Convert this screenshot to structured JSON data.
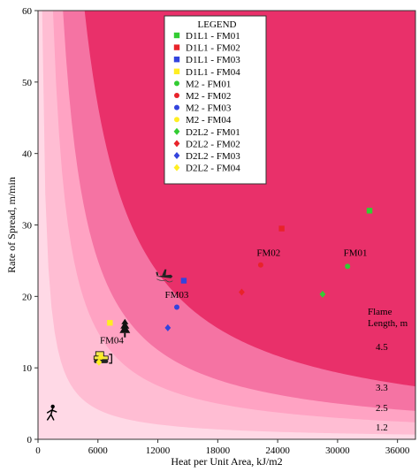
{
  "chart_data": {
    "type": "scatter",
    "title": "",
    "xlabel": "Heat per Unit Area, kJ/m2",
    "ylabel": "Rate of Spread, m/min",
    "xlim": [
      0,
      37800
    ],
    "ylim": [
      0,
      60
    ],
    "xticks": [
      "0",
      "6000",
      "12000",
      "18000",
      "24000",
      "30000",
      "36000"
    ],
    "yticks": [
      "0",
      "10",
      "20",
      "30",
      "40",
      "50",
      "60"
    ],
    "flame_length_zones": {
      "title": "Flame Length, m",
      "levels": [
        "1.2",
        "2.5",
        "3.3",
        "4.5"
      ],
      "hpa_times_ros": [
        25000,
        90000,
        150000,
        280000
      ],
      "colors": [
        "#ffd9e6",
        "#ffbdd3",
        "#ffa3c3",
        "#f573a3",
        "#e9306a"
      ]
    },
    "series": [
      {
        "name": "D1L1 - FM01",
        "marker": "square",
        "color": "#33cc33",
        "points": [
          [
            33200,
            32
          ]
        ]
      },
      {
        "name": "D1L1 - FM02",
        "marker": "square",
        "color": "#e8232a",
        "points": [
          [
            24400,
            29.5
          ]
        ]
      },
      {
        "name": "D1L1 - FM03",
        "marker": "square",
        "color": "#3344dd",
        "points": [
          [
            14600,
            22.2
          ]
        ]
      },
      {
        "name": "D1L1 - FM04",
        "marker": "square",
        "color": "#ffee22",
        "points": [
          [
            7200,
            16.3
          ]
        ]
      },
      {
        "name": "M2 - FM01",
        "marker": "circle",
        "color": "#33cc33",
        "points": [
          [
            31000,
            24.2
          ]
        ]
      },
      {
        "name": "M2 - FM02",
        "marker": "circle",
        "color": "#e8232a",
        "points": [
          [
            22300,
            24.4
          ]
        ]
      },
      {
        "name": "M2 - FM03",
        "marker": "circle",
        "color": "#3344dd",
        "points": [
          [
            13900,
            18.5
          ]
        ]
      },
      {
        "name": "M2 - FM04",
        "marker": "circle",
        "color": "#ffee22",
        "points": [
          [
            6300,
            11.5
          ]
        ]
      },
      {
        "name": "D2L2 - FM01",
        "marker": "diamond",
        "color": "#33cc33",
        "points": [
          [
            28500,
            20.3
          ]
        ]
      },
      {
        "name": "D2L2 - FM02",
        "marker": "diamond",
        "color": "#e8232a",
        "points": [
          [
            20400,
            20.6
          ]
        ]
      },
      {
        "name": "D2L2 - FM03",
        "marker": "diamond",
        "color": "#3344dd",
        "points": [
          [
            13000,
            15.6
          ]
        ]
      },
      {
        "name": "D2L2 - FM04",
        "marker": "diamond",
        "color": "#ffee22",
        "points": [
          [
            6100,
            10.8
          ]
        ]
      }
    ],
    "annotations": [
      {
        "text": "FM01",
        "x": 30600,
        "y": 25.7
      },
      {
        "text": "FM02",
        "x": 21900,
        "y": 25.7
      },
      {
        "text": "FM03",
        "x": 12700,
        "y": 19.8
      },
      {
        "text": "FM04",
        "x": 6200,
        "y": 13.4
      }
    ],
    "icons": [
      {
        "name": "walking-person-icon",
        "x": 1300,
        "y": 3.6
      },
      {
        "name": "bulldozer-icon",
        "x": 6400,
        "y": 11.4
      },
      {
        "name": "tree-icon",
        "x": 8700,
        "y": 15.5
      },
      {
        "name": "aircraft-icon",
        "x": 12600,
        "y": 22.8
      }
    ],
    "legend": {
      "title": "LEGEND",
      "position": "top-right"
    },
    "grid": false
  }
}
